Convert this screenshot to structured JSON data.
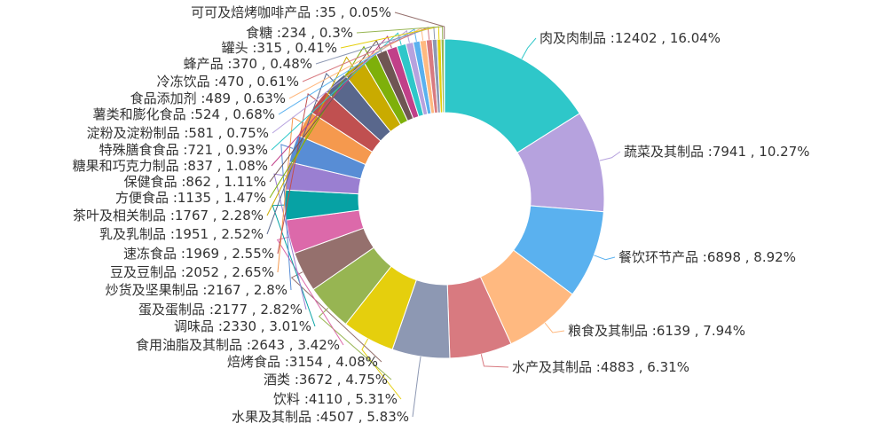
{
  "chart_data": {
    "type": "pie",
    "variant": "donut",
    "legend": "none",
    "slices": [
      {
        "name": "肉及肉制品",
        "value": 12402,
        "percent": "16.04%",
        "color": "#2ec7c9"
      },
      {
        "name": "蔬菜及其制品",
        "value": 7941,
        "percent": "10.27%",
        "color": "#b6a2de"
      },
      {
        "name": "餐饮环节产品",
        "value": 6898,
        "percent": "8.92%",
        "color": "#5ab1ef"
      },
      {
        "name": "粮食及其制品",
        "value": 6139,
        "percent": "7.94%",
        "color": "#ffb980"
      },
      {
        "name": "水产及其制品",
        "value": 4883,
        "percent": "6.31%",
        "color": "#d87a80"
      },
      {
        "name": "水果及其制品",
        "value": 4507,
        "percent": "5.83%",
        "color": "#8d98b3"
      },
      {
        "name": "饮料",
        "value": 4110,
        "percent": "5.31%",
        "color": "#e5cf0d"
      },
      {
        "name": "酒类",
        "value": 3672,
        "percent": "4.75%",
        "color": "#97b552"
      },
      {
        "name": "焙烤食品",
        "value": 3154,
        "percent": "4.08%",
        "color": "#95706d"
      },
      {
        "name": "食用油脂及其制品",
        "value": 2643,
        "percent": "3.42%",
        "color": "#dc69aa"
      },
      {
        "name": "调味品",
        "value": 2330,
        "percent": "3.01%",
        "color": "#07a2a4"
      },
      {
        "name": "蛋及蛋制品",
        "value": 2177,
        "percent": "2.82%",
        "color": "#9a7fd1"
      },
      {
        "name": "炒货及坚果制品",
        "value": 2167,
        "percent": "2.8%",
        "color": "#588dd5"
      },
      {
        "name": "豆及豆制品",
        "value": 2052,
        "percent": "2.65%",
        "color": "#f5994e"
      },
      {
        "name": "速冻食品",
        "value": 1969,
        "percent": "2.55%",
        "color": "#c05050"
      },
      {
        "name": "乳及乳制品",
        "value": 1951,
        "percent": "2.52%",
        "color": "#59678c"
      },
      {
        "name": "茶叶及相关制品",
        "value": 1767,
        "percent": "2.28%",
        "color": "#c9ab00"
      },
      {
        "name": "方便食品",
        "value": 1135,
        "percent": "1.47%",
        "color": "#7eb00a"
      },
      {
        "name": "保健食品",
        "value": 862,
        "percent": "1.11%",
        "color": "#6f5553"
      },
      {
        "name": "糖果和巧克力制品",
        "value": 837,
        "percent": "1.08%",
        "color": "#c14089"
      },
      {
        "name": "特殊膳食食品",
        "value": 721,
        "percent": "0.93%",
        "color": "#2ec7c9"
      },
      {
        "name": "淀粉及淀粉制品",
        "value": 581,
        "percent": "0.75%",
        "color": "#b6a2de"
      },
      {
        "name": "薯类和膨化食品",
        "value": 524,
        "percent": "0.68%",
        "color": "#5ab1ef"
      },
      {
        "name": "食品添加剂",
        "value": 489,
        "percent": "0.63%",
        "color": "#ffb980"
      },
      {
        "name": "冷冻饮品",
        "value": 470,
        "percent": "0.61%",
        "color": "#d87a80"
      },
      {
        "name": "蜂产品",
        "value": 370,
        "percent": "0.48%",
        "color": "#8d98b3"
      },
      {
        "name": "罐头",
        "value": 315,
        "percent": "0.41%",
        "color": "#e5cf0d"
      },
      {
        "name": "食糖",
        "value": 234,
        "percent": "0.3%",
        "color": "#97b552"
      },
      {
        "name": "可可及焙烤咖啡产品",
        "value": 35,
        "percent": "0.05%",
        "color": "#95706d"
      }
    ]
  }
}
